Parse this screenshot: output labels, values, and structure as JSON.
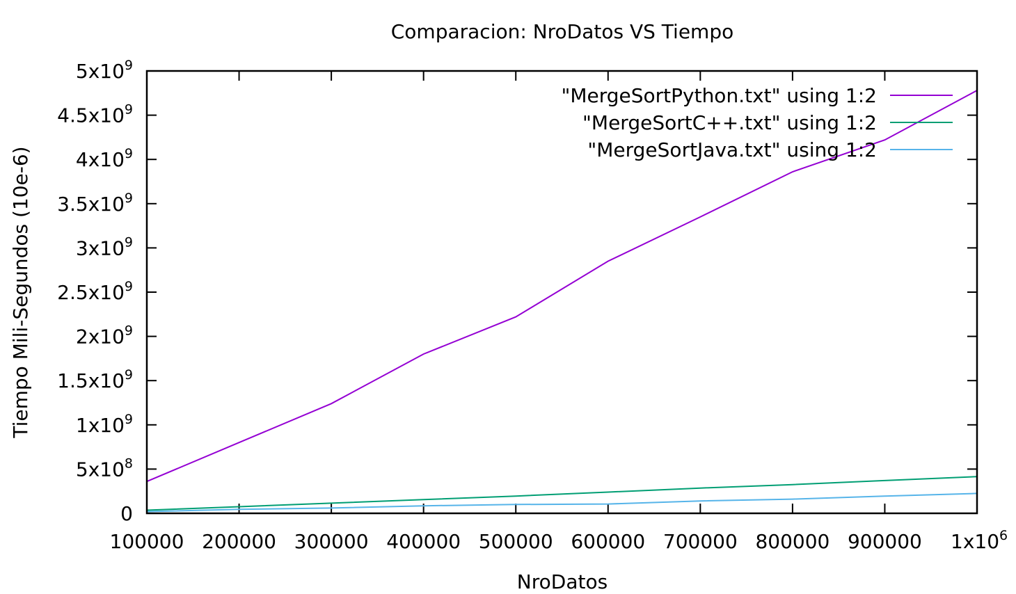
{
  "chart_data": {
    "type": "line",
    "title": "Comparacion: NroDatos VS Tiempo",
    "xlabel": "NroDatos",
    "ylabel": "Tiempo Mili-Segundos (10e-6)",
    "xlim": [
      100000,
      1000000
    ],
    "ylim": [
      0,
      5000000000
    ],
    "grid": false,
    "legend_position": "top-right",
    "x_ticks": [
      {
        "value": 100000,
        "label": "100000"
      },
      {
        "value": 200000,
        "label": "200000"
      },
      {
        "value": 300000,
        "label": "300000"
      },
      {
        "value": 400000,
        "label": "400000"
      },
      {
        "value": 500000,
        "label": "500000"
      },
      {
        "value": 600000,
        "label": "600000"
      },
      {
        "value": 700000,
        "label": "700000"
      },
      {
        "value": 800000,
        "label": "800000"
      },
      {
        "value": 900000,
        "label": "900000"
      },
      {
        "value": 1000000,
        "label": "1x10",
        "exp": "6"
      }
    ],
    "y_ticks": [
      {
        "value": 0,
        "label": "0"
      },
      {
        "value": 500000000,
        "label": "5x10",
        "exp": "8"
      },
      {
        "value": 1000000000,
        "label": "1x10",
        "exp": "9"
      },
      {
        "value": 1500000000,
        "label": "1.5x10",
        "exp": "9"
      },
      {
        "value": 2000000000,
        "label": "2x10",
        "exp": "9"
      },
      {
        "value": 2500000000,
        "label": "2.5x10",
        "exp": "9"
      },
      {
        "value": 3000000000,
        "label": "3x10",
        "exp": "9"
      },
      {
        "value": 3500000000,
        "label": "3.5x10",
        "exp": "9"
      },
      {
        "value": 4000000000,
        "label": "4x10",
        "exp": "9"
      },
      {
        "value": 4500000000,
        "label": "4.5x10",
        "exp": "9"
      },
      {
        "value": 5000000000,
        "label": "5x10",
        "exp": "9"
      }
    ],
    "x": [
      100000,
      200000,
      300000,
      400000,
      500000,
      600000,
      700000,
      800000,
      900000,
      1000000
    ],
    "series": [
      {
        "name": "\"MergeSortPython.txt\" using 1:2",
        "color": "#9400d3",
        "values": [
          360000000,
          800000000,
          1240000000,
          1800000000,
          2220000000,
          2850000000,
          3350000000,
          3860000000,
          4220000000,
          4780000000
        ]
      },
      {
        "name": "\"MergeSortC++.txt\" using 1:2",
        "color": "#009e73",
        "values": [
          35000000,
          75000000,
          115000000,
          155000000,
          195000000,
          240000000,
          285000000,
          325000000,
          370000000,
          415000000
        ]
      },
      {
        "name": "\"MergeSortJava.txt\" using 1:2",
        "color": "#56b4e9",
        "values": [
          20000000,
          45000000,
          60000000,
          85000000,
          100000000,
          105000000,
          140000000,
          160000000,
          195000000,
          225000000
        ]
      }
    ]
  }
}
